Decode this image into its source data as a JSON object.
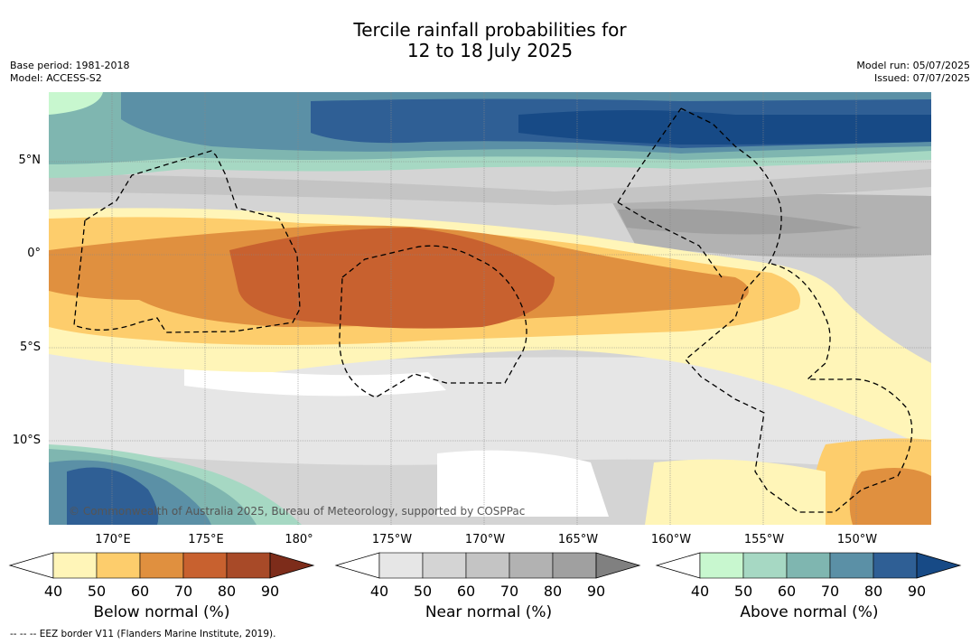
{
  "title_line1": "Tercile rainfall probabilities for",
  "title_line2": "12 to 18 July 2025",
  "base_period": "Base period: 1981-2018",
  "model": "Model: ACCESS-S2",
  "model_run": "Model run: 05/07/2025",
  "issued": "Issued: 07/07/2025",
  "copyright": "© Commonwealth of Australia 2025, Bureau of Meteorology, supported by COSPPac",
  "lat_labels": [
    "5°N",
    "0°",
    "5°S",
    "10°S"
  ],
  "lon_labels": [
    "170°E",
    "175°E",
    "180°",
    "175°W",
    "170°W",
    "165°W",
    "160°W",
    "155°W",
    "150°W"
  ],
  "colorbars": {
    "below": {
      "title": "Below normal (%)",
      "ticks": [
        "40",
        "50",
        "60",
        "70",
        "80",
        "90"
      ],
      "colors": [
        "#fff5b8",
        "#fdcd6c",
        "#e0903f",
        "#c8612f",
        "#a84a28",
        "#7d2c1a"
      ]
    },
    "near": {
      "title": "Near normal (%)",
      "ticks": [
        "40",
        "50",
        "60",
        "70",
        "80",
        "90"
      ],
      "colors": [
        "#e6e6e6",
        "#d4d4d4",
        "#c4c4c4",
        "#b2b2b2",
        "#a0a0a0",
        "#808080"
      ]
    },
    "above": {
      "title": "Above normal (%)",
      "ticks": [
        "40",
        "50",
        "60",
        "70",
        "80",
        "90"
      ],
      "colors": [
        "#c8f7cf",
        "#a6d8c3",
        "#7fb6b0",
        "#5b90a6",
        "#2f5f95",
        "#174a86"
      ]
    }
  },
  "footnote": "--  --  -- EEZ border V11 (Flanders Marine Institute, 2019)."
}
